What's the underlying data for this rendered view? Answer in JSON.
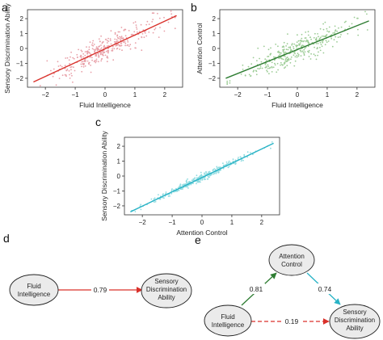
{
  "panels": {
    "a": "a",
    "b": "b",
    "c": "c",
    "d": "d",
    "e": "e"
  },
  "chart_data": [
    {
      "panel": "a",
      "type": "scatter",
      "xlabel": "Fluid Intelligence",
      "ylabel": "Sensory Discrimination Ability",
      "xlim": [
        -2.6,
        2.6
      ],
      "ylim": [
        -2.6,
        2.6
      ],
      "xticks": [
        -2,
        -1,
        0,
        1,
        2
      ],
      "yticks": [
        -2,
        -1,
        0,
        1,
        2
      ],
      "point_color": "#e8a0a8",
      "line_color": "#d9312b",
      "point_count": 330,
      "spread": 0.42,
      "fit_line": {
        "x": [
          -2.4,
          2.4
        ],
        "y": [
          -2.25,
          2.2
        ]
      },
      "grid": false,
      "box": true
    },
    {
      "panel": "b",
      "type": "scatter",
      "xlabel": "Fluid Intelligence",
      "ylabel": "Attention Control",
      "xlim": [
        -2.6,
        2.6
      ],
      "ylim": [
        -2.6,
        2.6
      ],
      "xticks": [
        -2,
        -1,
        0,
        1,
        2
      ],
      "yticks": [
        -2,
        -1,
        0,
        1,
        2
      ],
      "point_color": "#9ccc95",
      "line_color": "#2e7d32",
      "point_count": 330,
      "spread": 0.42,
      "fit_line": {
        "x": [
          -2.4,
          2.4
        ],
        "y": [
          -2.0,
          1.85
        ]
      },
      "grid": false,
      "box": true
    },
    {
      "panel": "c",
      "type": "scatter",
      "xlabel": "Attention Control",
      "ylabel": "Sensory Discrimination Ability",
      "xlim": [
        -2.6,
        2.6
      ],
      "ylim": [
        -2.6,
        2.6
      ],
      "xticks": [
        -2,
        -1,
        0,
        1,
        2
      ],
      "yticks": [
        -2,
        -1,
        0,
        1,
        2
      ],
      "point_color": "#8fdbe0",
      "line_color": "#29b3c6",
      "point_count": 330,
      "spread": 0.13,
      "fit_line": {
        "x": [
          -2.4,
          2.4
        ],
        "y": [
          -2.4,
          2.2
        ]
      },
      "grid": false,
      "box": true
    }
  ],
  "path_d": {
    "nodes": [
      {
        "id": "fluid",
        "lines": [
          "Fluid",
          "Intelligence"
        ]
      },
      {
        "id": "sda",
        "lines": [
          "Sensory",
          "Discrimination",
          "Ability"
        ]
      }
    ],
    "edges": [
      {
        "from": "fluid",
        "to": "sda",
        "label": "0.79",
        "color": "#d9312b",
        "dashed": false
      }
    ]
  },
  "path_e": {
    "nodes": [
      {
        "id": "ac",
        "lines": [
          "Attention",
          "Control"
        ]
      },
      {
        "id": "fluid",
        "lines": [
          "Fluid",
          "Intelligence"
        ]
      },
      {
        "id": "sda",
        "lines": [
          "Sensory",
          "Discrimination",
          "Ability"
        ]
      }
    ],
    "edges": [
      {
        "from": "fluid",
        "to": "ac",
        "label": "0.81",
        "color": "#2e7d32",
        "dashed": false
      },
      {
        "from": "ac",
        "to": "sda",
        "label": "0.74",
        "color": "#29b3c6",
        "dashed": false
      },
      {
        "from": "fluid",
        "to": "sda",
        "label": "0.19",
        "color": "#d9312b",
        "dashed": true
      }
    ]
  }
}
